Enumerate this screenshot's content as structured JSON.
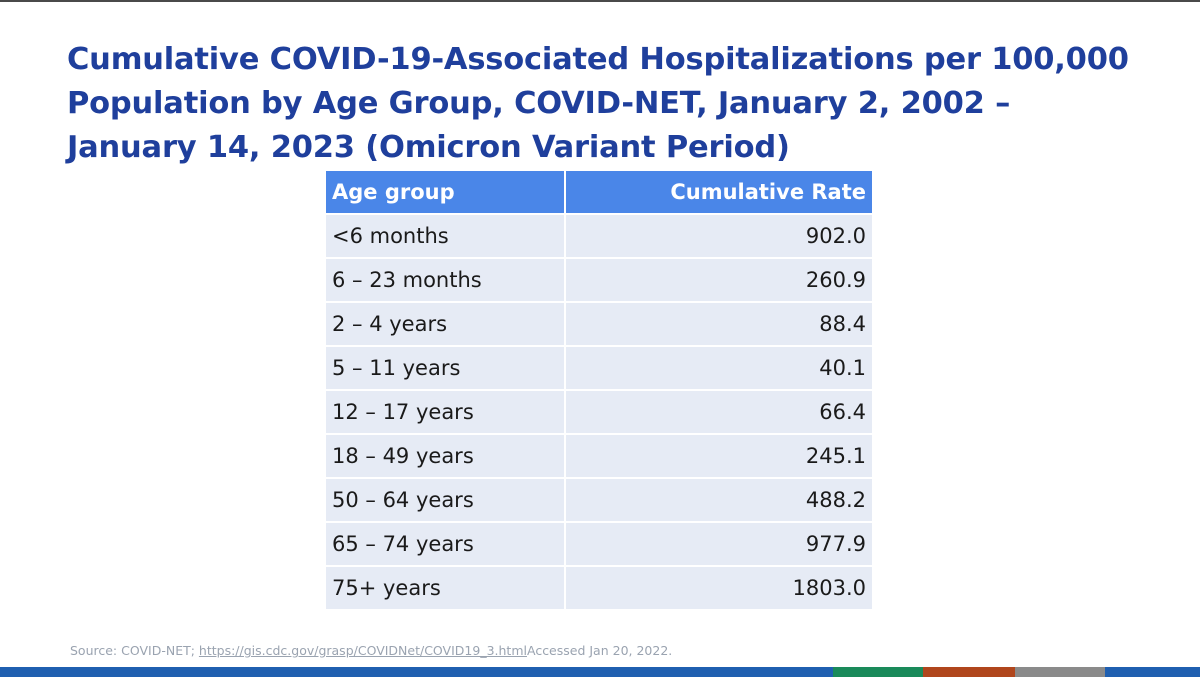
{
  "slide": {
    "title": "Cumulative COVID-19-Associated Hospitalizations per 100,000 Population by Age Group, COVID-NET, January 2, 2002 – January 14, 2023 (Omicron Variant Period)"
  },
  "table": {
    "headers": {
      "age_group": "Age group",
      "rate": "Cumulative Rate"
    },
    "rows": [
      {
        "age_group": "<6 months",
        "rate": "902.0"
      },
      {
        "age_group": "6 – 23 months",
        "rate": "260.9"
      },
      {
        "age_group": "2 – 4 years",
        "rate": "88.4"
      },
      {
        "age_group": "5 – 11 years",
        "rate": "40.1"
      },
      {
        "age_group": "12 – 17 years",
        "rate": "66.4"
      },
      {
        "age_group": "18 – 49 years",
        "rate": "245.1"
      },
      {
        "age_group": "50 – 64 years",
        "rate": "488.2"
      },
      {
        "age_group": "65 – 74 years",
        "rate": "977.9"
      },
      {
        "age_group": "75+ years",
        "rate": "1803.0"
      }
    ]
  },
  "source": {
    "prefix": "Source: COVID-NET; ",
    "link": "https://gis.cdc.gov/grasp/COVIDNet/COVID19_3.html",
    "suffix": "Accessed Jan 20, 2022."
  },
  "colors": {
    "title": "#1f3f9c",
    "header_bg": "#4a86e8",
    "row_bg": "#e6ebf5",
    "footer": [
      "#1f5fb0",
      "#1f5fb0",
      "#1a8a5a",
      "#b0461d",
      "#8a8a8a",
      "#1f5fb0"
    ]
  }
}
